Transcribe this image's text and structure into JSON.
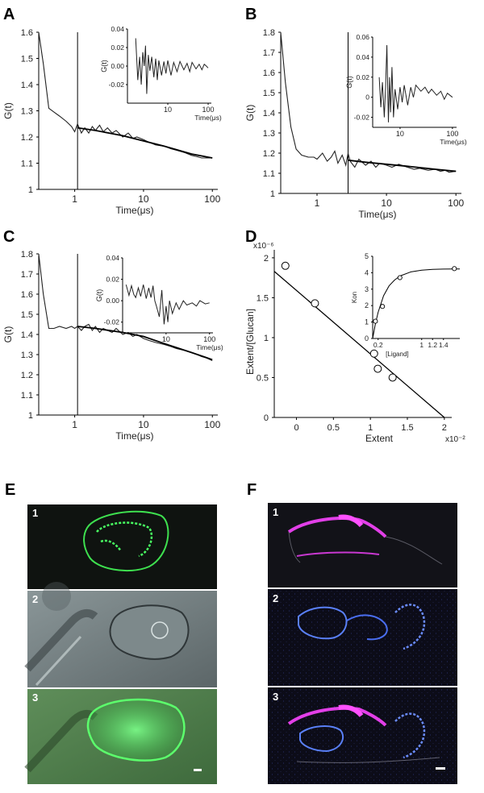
{
  "figure_panels": {
    "A": {
      "letter": "A"
    },
    "B": {
      "letter": "B"
    },
    "C": {
      "letter": "C"
    },
    "D": {
      "letter": "D"
    },
    "E": {
      "letter": "E",
      "subpanels": [
        "1",
        "2",
        "3"
      ]
    },
    "F": {
      "letter": "F",
      "subpanels": [
        "1",
        "2",
        "3"
      ]
    }
  },
  "colors": {
    "fluor_green": "#33d04a",
    "fluor_magenta": "#e040e8",
    "fluor_blue": "#4a78f0",
    "dark_bg": "#101010",
    "phase_bg": "#6d7a7c"
  },
  "chart_data": [
    {
      "id": "A",
      "type": "line",
      "xlabel": "Time(μs)",
      "ylabel": "G(t)",
      "xscale": "log",
      "xlim": [
        0.3,
        120
      ],
      "ylim": [
        1.0,
        1.6
      ],
      "yticks": [
        "1",
        "1.1",
        "1.2",
        "1.3",
        "1.4",
        "1.5",
        "1.6"
      ],
      "xticks": [
        "1",
        "10",
        "100"
      ],
      "marker_x": 1.1,
      "x": [
        0.3,
        0.35,
        0.42,
        0.5,
        0.6,
        0.75,
        0.9,
        1.0,
        1.1,
        1.25,
        1.4,
        1.6,
        1.8,
        2.0,
        2.3,
        2.6,
        3.0,
        3.5,
        4.0,
        5.0,
        6.0,
        7.0,
        8.0,
        10,
        12,
        15,
        20,
        25,
        30,
        40,
        50,
        60,
        70,
        80,
        100
      ],
      "y": [
        1.6,
        1.48,
        1.31,
        1.295,
        1.28,
        1.26,
        1.24,
        1.22,
        1.25,
        1.215,
        1.235,
        1.215,
        1.24,
        1.225,
        1.245,
        1.22,
        1.235,
        1.215,
        1.225,
        1.2,
        1.215,
        1.195,
        1.2,
        1.19,
        1.18,
        1.17,
        1.165,
        1.155,
        1.15,
        1.14,
        1.13,
        1.125,
        1.12,
        1.12,
        1.12
      ],
      "fit_x": [
        1.1,
        2,
        5,
        10,
        20,
        50,
        100
      ],
      "fit_y": [
        1.235,
        1.225,
        1.205,
        1.185,
        1.165,
        1.135,
        1.12
      ],
      "inset": {
        "ylabel": "G(t)",
        "xlabel": "Time(μs)",
        "xscale": "log",
        "xlim": [
          1,
          120
        ],
        "ylim": [
          -0.04,
          0.04
        ],
        "yticks": [
          "0.04",
          "0.02",
          "0.00",
          "-0.02"
        ],
        "xticks": [
          "10",
          "100"
        ],
        "x": [
          1.6,
          1.8,
          2.0,
          2.2,
          2.4,
          2.6,
          2.8,
          3.0,
          3.3,
          3.6,
          4.0,
          4.5,
          5,
          5.5,
          6,
          7,
          8,
          9,
          10,
          12,
          14,
          17,
          20,
          25,
          30,
          35,
          40,
          50,
          60,
          70,
          80,
          90,
          100
        ],
        "y": [
          0.03,
          -0.015,
          0.01,
          -0.02,
          0.015,
          0.0,
          0.022,
          -0.03,
          0.012,
          -0.005,
          0.01,
          -0.012,
          0.008,
          -0.015,
          0.006,
          -0.01,
          0.005,
          -0.008,
          0.006,
          -0.01,
          0.004,
          -0.006,
          0.005,
          -0.004,
          0.003,
          -0.006,
          0.004,
          -0.003,
          0.002,
          -0.004,
          0.002,
          0.0,
          -0.002
        ]
      }
    },
    {
      "id": "B",
      "type": "line",
      "xlabel": "Time(μs)",
      "ylabel": "G(t)",
      "xscale": "log",
      "xlim": [
        0.3,
        120
      ],
      "ylim": [
        1.0,
        1.8
      ],
      "yticks": [
        "1",
        "1.1",
        "1.2",
        "1.3",
        "1.4",
        "1.5",
        "1.6",
        "1.7",
        "1.8"
      ],
      "xticks": [
        "1",
        "10",
        "100"
      ],
      "marker_x": 2.8,
      "x": [
        0.3,
        0.35,
        0.42,
        0.5,
        0.6,
        0.75,
        0.9,
        1.0,
        1.2,
        1.4,
        1.6,
        1.8,
        2.0,
        2.3,
        2.6,
        2.8,
        3.0,
        3.5,
        4.0,
        5.0,
        6.0,
        7.0,
        8.0,
        10,
        12,
        15,
        20,
        25,
        30,
        40,
        50,
        60,
        70,
        80,
        100
      ],
      "y": [
        1.8,
        1.55,
        1.33,
        1.22,
        1.19,
        1.18,
        1.18,
        1.17,
        1.2,
        1.16,
        1.18,
        1.21,
        1.15,
        1.19,
        1.14,
        1.2,
        1.16,
        1.13,
        1.17,
        1.14,
        1.16,
        1.13,
        1.15,
        1.14,
        1.13,
        1.145,
        1.13,
        1.12,
        1.125,
        1.115,
        1.12,
        1.11,
        1.115,
        1.105,
        1.11
      ],
      "fit_x": [
        2.8,
        5,
        10,
        20,
        50,
        100
      ],
      "fit_y": [
        1.165,
        1.155,
        1.145,
        1.135,
        1.12,
        1.11
      ],
      "inset": {
        "ylabel": "G(t)",
        "xlabel": "Time(μs)",
        "xscale": "log",
        "xlim": [
          3,
          120
        ],
        "ylim": [
          -0.03,
          0.06
        ],
        "yticks": [
          "0.06",
          "0.04",
          "0.02",
          "0",
          "-0.02"
        ],
        "xticks": [
          "10",
          "100"
        ],
        "x": [
          4.0,
          4.3,
          4.6,
          5.0,
          5.3,
          5.6,
          6.0,
          6.3,
          6.6,
          7.0,
          7.5,
          8,
          9,
          10,
          11,
          12,
          14,
          16,
          18,
          20,
          25,
          30,
          35,
          40,
          50,
          60,
          70,
          80,
          100
        ],
        "y": [
          0.02,
          -0.01,
          0.015,
          -0.02,
          0.01,
          0.052,
          -0.025,
          0.02,
          -0.015,
          0.03,
          -0.02,
          0.008,
          -0.012,
          0.01,
          -0.005,
          0.012,
          -0.008,
          0.01,
          0.0,
          0.012,
          0.006,
          0.01,
          0.004,
          0.008,
          0.002,
          0.006,
          -0.002,
          0.004,
          0.0
        ]
      }
    },
    {
      "id": "C",
      "type": "line",
      "xlabel": "Time(μs)",
      "ylabel": "G(t)",
      "xscale": "log",
      "xlim": [
        0.3,
        120
      ],
      "ylim": [
        1.0,
        1.8
      ],
      "yticks": [
        "1",
        "1.1",
        "1.2",
        "1.3",
        "1.4",
        "1.5",
        "1.6",
        "1.7",
        "1.8"
      ],
      "xticks": [
        "1",
        "10",
        "100"
      ],
      "marker_x": 1.1,
      "x": [
        0.3,
        0.35,
        0.42,
        0.5,
        0.6,
        0.75,
        0.9,
        1.0,
        1.1,
        1.25,
        1.4,
        1.6,
        1.8,
        2.0,
        2.3,
        2.6,
        3.0,
        3.5,
        4.0,
        5.0,
        6.0,
        7.0,
        8.0,
        10,
        12,
        15,
        20,
        25,
        30,
        40,
        50,
        60,
        70,
        80,
        100
      ],
      "y": [
        1.8,
        1.6,
        1.43,
        1.43,
        1.44,
        1.43,
        1.44,
        1.43,
        1.44,
        1.42,
        1.44,
        1.45,
        1.42,
        1.44,
        1.41,
        1.43,
        1.42,
        1.41,
        1.43,
        1.4,
        1.41,
        1.39,
        1.4,
        1.38,
        1.37,
        1.36,
        1.35,
        1.34,
        1.33,
        1.32,
        1.31,
        1.3,
        1.29,
        1.285,
        1.27
      ],
      "fit_x": [
        1.1,
        2,
        5,
        10,
        20,
        50,
        100
      ],
      "fit_y": [
        1.44,
        1.43,
        1.41,
        1.39,
        1.355,
        1.31,
        1.275
      ],
      "inset": {
        "ylabel": "G(t)",
        "xlabel": "Time(μs)",
        "xscale": "log",
        "xlim": [
          1,
          120
        ],
        "ylim": [
          -0.03,
          0.04
        ],
        "yticks": [
          "0.04",
          "0.02",
          "0.00",
          "-0.02"
        ],
        "xticks": [
          "10",
          "100"
        ],
        "x": [
          1.2,
          1.4,
          1.6,
          1.8,
          2.0,
          2.3,
          2.6,
          3.0,
          3.5,
          4.0,
          4.5,
          5.0,
          5.5,
          6.0,
          7.0,
          8.0,
          9.0,
          10,
          11,
          12,
          14,
          17,
          20,
          25,
          30,
          40,
          50,
          60,
          80,
          100
        ],
        "y": [
          0.015,
          0.005,
          0.014,
          0.006,
          0.003,
          0.012,
          0.004,
          0.015,
          0.002,
          0.012,
          0.003,
          0.014,
          0.0,
          -0.005,
          -0.015,
          0.01,
          -0.022,
          -0.005,
          -0.02,
          0.0,
          -0.012,
          -0.002,
          -0.008,
          0.0,
          -0.004,
          -0.002,
          -0.005,
          0.0,
          -0.003,
          -0.002
        ]
      }
    },
    {
      "id": "D",
      "type": "scatter",
      "xlabel": "Extent",
      "ylabel": "Extent/[Glucan]",
      "xlim": [
        -0.3,
        2.1
      ],
      "ylim": [
        0,
        2.1
      ],
      "x_multiplier": "x10⁻²",
      "y_multiplier": "x10⁻⁶",
      "xticks": [
        "0",
        "0.5",
        "1",
        "1.5",
        "2"
      ],
      "yticks": [
        "0",
        "0.5",
        "1",
        "1.5",
        "2"
      ],
      "points_x": [
        -0.15,
        0.25,
        1.05,
        1.1,
        1.3
      ],
      "points_y": [
        1.9,
        1.43,
        0.8,
        0.61,
        0.5
      ],
      "fit_x": [
        -0.3,
        2.0
      ],
      "fit_y": [
        1.83,
        0.0
      ],
      "inset": {
        "xlabel": "[Ligand]",
        "ylabel": "Kon",
        "xlim": [
          0.1,
          1.7
        ],
        "ylim": [
          0,
          5
        ],
        "yticks": [
          "0",
          "1",
          "2",
          "3",
          "4",
          "5"
        ],
        "xticks": [
          "0.2",
          "1",
          "1.2",
          "1.4"
        ],
        "points_x": [
          0.15,
          0.28,
          0.6,
          1.6
        ],
        "points_y": [
          1.05,
          1.95,
          3.7,
          4.25
        ],
        "curve_x": [
          0.1,
          0.15,
          0.2,
          0.3,
          0.4,
          0.5,
          0.6,
          0.8,
          1.0,
          1.2,
          1.4,
          1.6,
          1.7
        ],
        "curve_y": [
          0.0,
          0.9,
          1.6,
          2.6,
          3.2,
          3.55,
          3.8,
          4.05,
          4.15,
          4.2,
          4.22,
          4.23,
          4.23
        ]
      }
    }
  ]
}
